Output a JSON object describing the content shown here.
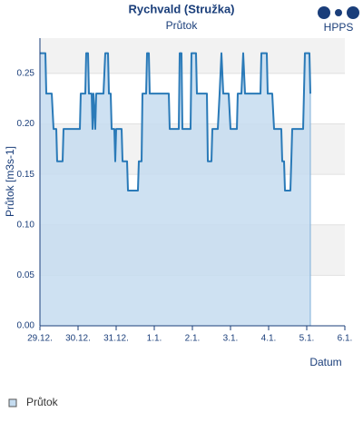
{
  "chart_data": {
    "type": "line",
    "title": "Rychvald (Stružka)",
    "subtitle": "Průtok",
    "logo": "HPPS",
    "y_label": "Průtok [m3s-1]",
    "x_label": "Datum",
    "grid": true,
    "legend": "bottom-left",
    "x": [
      0,
      0.143,
      0.167,
      0.31,
      0.357,
      0.429,
      0.452,
      0.595,
      0.619,
      1.048,
      1.071,
      1.19,
      1.214,
      1.262,
      1.286,
      1.357,
      1.381,
      1.405,
      1.452,
      1.476,
      1.667,
      1.714,
      1.786,
      1.81,
      1.857,
      1.881,
      1.952,
      1.976,
      2.0,
      2.143,
      2.167,
      2.286,
      2.31,
      2.571,
      2.595,
      2.667,
      2.69,
      2.786,
      2.81,
      2.857,
      2.881,
      3.381,
      3.405,
      3.643,
      3.667,
      3.714,
      3.738,
      3.952,
      3.976,
      4.095,
      4.119,
      4.381,
      4.405,
      4.5,
      4.524,
      4.667,
      4.714,
      4.762,
      4.81,
      4.952,
      5.0,
      5.167,
      5.19,
      5.286,
      5.333,
      5.381,
      5.786,
      5.81,
      5.952,
      5.976,
      6.095,
      6.143,
      6.333,
      6.357,
      6.405,
      6.429,
      6.571,
      6.595,
      6.619,
      6.905,
      6.952,
      7.071,
      7.095
    ],
    "series": [
      {
        "name": "Průtok",
        "color": "#2a7ab8",
        "fill": "#c5dcf0",
        "values": [
          0.27,
          0.27,
          0.23,
          0.23,
          0.195,
          0.195,
          0.163,
          0.163,
          0.195,
          0.195,
          0.23,
          0.23,
          0.27,
          0.27,
          0.23,
          0.23,
          0.195,
          0.23,
          0.195,
          0.23,
          0.23,
          0.27,
          0.27,
          0.23,
          0.23,
          0.195,
          0.195,
          0.163,
          0.195,
          0.195,
          0.163,
          0.163,
          0.134,
          0.134,
          0.163,
          0.163,
          0.23,
          0.23,
          0.27,
          0.27,
          0.23,
          0.23,
          0.195,
          0.195,
          0.27,
          0.27,
          0.195,
          0.195,
          0.27,
          0.27,
          0.23,
          0.23,
          0.163,
          0.163,
          0.195,
          0.195,
          0.23,
          0.27,
          0.23,
          0.23,
          0.195,
          0.195,
          0.23,
          0.23,
          0.27,
          0.23,
          0.23,
          0.27,
          0.27,
          0.23,
          0.23,
          0.195,
          0.195,
          0.163,
          0.163,
          0.134,
          0.134,
          0.163,
          0.195,
          0.195,
          0.27,
          0.27,
          0.23
        ]
      }
    ],
    "xlim": [
      0,
      8
    ],
    "xticks": [
      {
        "value": 0,
        "label": "29.12."
      },
      {
        "value": 1,
        "label": "30.12."
      },
      {
        "value": 2,
        "label": "31.12."
      },
      {
        "value": 3,
        "label": "1.1."
      },
      {
        "value": 4,
        "label": "2.1."
      },
      {
        "value": 5,
        "label": "3.1."
      },
      {
        "value": 6,
        "label": "4.1."
      },
      {
        "value": 7,
        "label": "5.1."
      },
      {
        "value": 8,
        "label": "6.1."
      }
    ],
    "ylim": [
      0,
      0.285
    ],
    "yticks": [
      {
        "value": 0,
        "label": "0.00"
      },
      0.05,
      {
        "value": 0.1,
        "label": "0.10"
      },
      0.15,
      {
        "value": 0.2,
        "label": "0.20"
      },
      0.25
    ]
  }
}
